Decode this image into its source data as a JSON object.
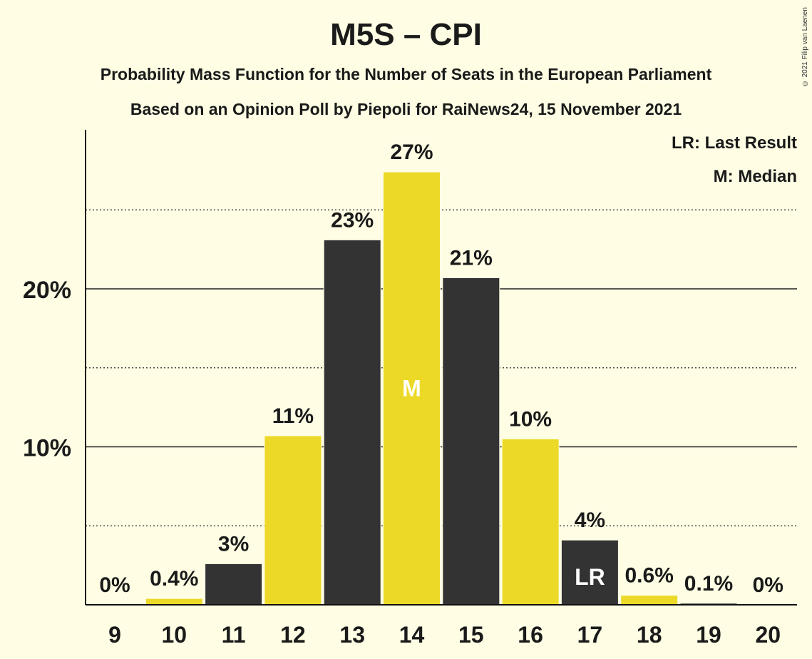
{
  "title": "M5S – CPI",
  "subtitle_1": "Probability Mass Function for the Number of Seats in the European Parliament",
  "subtitle_2": "Based on an Opinion Poll by Piepoli for RaiNews24, 15 November 2021",
  "copyright": "© 2021 Filip van Laenen",
  "legend": {
    "last_result": "LR: Last Result",
    "median": "M: Median"
  },
  "colors": {
    "dark": "#333333",
    "yellow": "#ECD927",
    "background": "#FFFEE4"
  },
  "chart_data": {
    "type": "bar",
    "categories": [
      "9",
      "10",
      "11",
      "12",
      "13",
      "14",
      "15",
      "16",
      "17",
      "18",
      "19",
      "20"
    ],
    "values": [
      0,
      0.4,
      2.6,
      10.7,
      23.1,
      27.4,
      20.7,
      10.5,
      4.1,
      0.6,
      0.1,
      0
    ],
    "data_labels": [
      "0%",
      "0.4%",
      "3%",
      "11%",
      "23%",
      "27%",
      "21%",
      "10%",
      "4%",
      "0.6%",
      "0.1%",
      "0%"
    ],
    "bar_colors": [
      "dark",
      "yellow",
      "dark",
      "yellow",
      "dark",
      "yellow",
      "dark",
      "yellow",
      "dark",
      "yellow",
      "dark",
      "yellow"
    ],
    "bar_markers": {
      "14": "M",
      "17": "LR"
    },
    "y_ticks": [
      10,
      20
    ],
    "y_tick_labels": [
      "10%",
      "20%"
    ],
    "ylim": [
      0,
      30
    ],
    "grid": {
      "solid": [
        10,
        20
      ],
      "dotted": [
        5,
        15,
        25
      ]
    }
  }
}
